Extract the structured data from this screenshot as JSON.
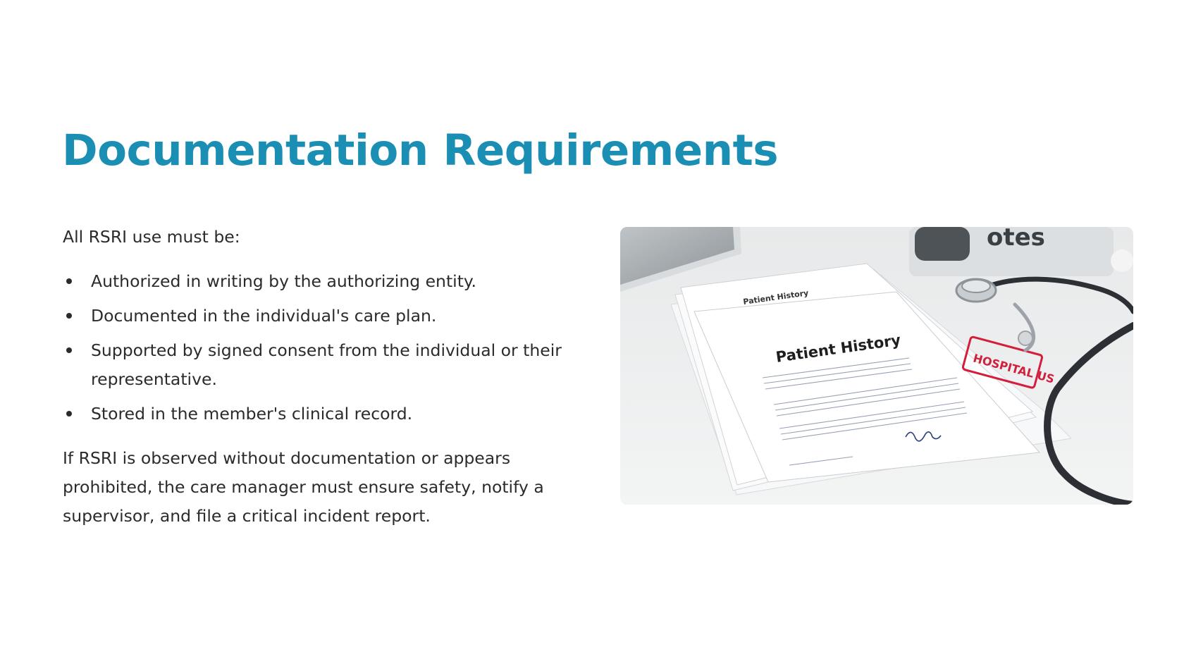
{
  "slide": {
    "title": "Documentation Requirements",
    "intro": "All RSRI use must be:",
    "bullets": [
      "Authorized in writing by the authorizing entity.",
      "Documented in the individual's care plan.",
      "Supported by signed consent from the individual or their representative.",
      "Stored in the member's clinical record."
    ],
    "closing": "If RSRI is observed without documentation or appears prohibited, the care manager must ensure safety, notify a supervisor, and file a critical incident report."
  },
  "photo": {
    "doc_title_small": "Patient History",
    "doc_title_large": "Patient History",
    "stamp_text": "HOSPITAL US",
    "box_text": "otes"
  },
  "colors": {
    "title": "#1b8fb3",
    "body_text": "#2b2b2b",
    "stamp": "#d11f3c"
  }
}
